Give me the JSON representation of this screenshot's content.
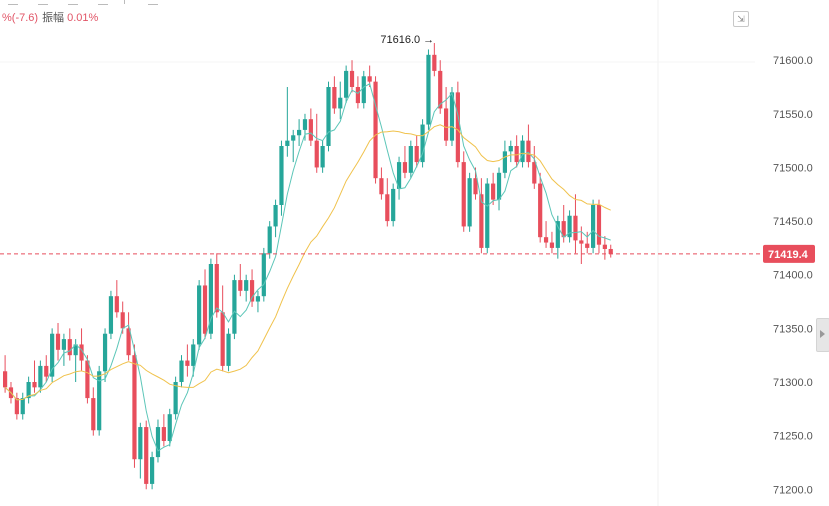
{
  "header": {
    "change_text": "%(-7.6)",
    "amplitude_label": "振幅",
    "amplitude_value": "0.01%"
  },
  "controls": {
    "fit_icon": "fit-screen-icon",
    "scroll_icon": "chevron-right-icon"
  },
  "colors": {
    "up": "#26a69a",
    "down": "#e84e5c",
    "ma_fast": "#5cc6b8",
    "ma_slow": "#f0c24c",
    "price_line": "#e84e5c",
    "axis_text": "#555555"
  },
  "chart_data": {
    "type": "candlestick",
    "y_axis_ticks": [
      71200,
      71250,
      71300,
      71350,
      71400,
      71450,
      71500,
      71550,
      71600
    ],
    "y_axis_tick_labels": [
      "71200.0",
      "71250.0",
      "71300.0",
      "71350.0",
      "71400.0",
      "71450.0",
      "71500.0",
      "71550.0",
      "71600.0"
    ],
    "ylim": [
      71190,
      71630
    ],
    "current_price": 71419.4,
    "current_price_label": "71419.4",
    "high_annotation": {
      "value": 71616.0,
      "label": "71616.0 →",
      "candle_index": 72
    },
    "candles": [
      [
        71310,
        71325,
        71290,
        71295
      ],
      [
        71295,
        71300,
        71280,
        71285
      ],
      [
        71285,
        71290,
        71265,
        71270
      ],
      [
        71270,
        71290,
        71265,
        71285
      ],
      [
        71285,
        71305,
        71280,
        71300
      ],
      [
        71300,
        71320,
        71290,
        71295
      ],
      [
        71295,
        71320,
        71290,
        71315
      ],
      [
        71315,
        71325,
        71300,
        71305
      ],
      [
        71305,
        71350,
        71300,
        71345
      ],
      [
        71345,
        71355,
        71320,
        71330
      ],
      [
        71330,
        71345,
        71315,
        71340
      ],
      [
        71340,
        71350,
        71320,
        71325
      ],
      [
        71325,
        71340,
        71300,
        71335
      ],
      [
        71335,
        71350,
        71310,
        71320
      ],
      [
        71320,
        71325,
        71280,
        71285
      ],
      [
        71285,
        71295,
        71250,
        71255
      ],
      [
        71255,
        71315,
        71250,
        71310
      ],
      [
        71310,
        71350,
        71300,
        71345
      ],
      [
        71345,
        71385,
        71340,
        71380
      ],
      [
        71380,
        71395,
        71360,
        71365
      ],
      [
        71365,
        71375,
        71345,
        71350
      ],
      [
        71350,
        71365,
        71320,
        71325
      ],
      [
        71325,
        71335,
        71220,
        71228
      ],
      [
        71228,
        71262,
        71210,
        71258
      ],
      [
        71258,
        71264,
        71200,
        71205
      ],
      [
        71205,
        71235,
        71200,
        71230
      ],
      [
        71230,
        71265,
        71225,
        71258
      ],
      [
        71258,
        71270,
        71240,
        71245
      ],
      [
        71245,
        71275,
        71240,
        71270
      ],
      [
        71270,
        71305,
        71265,
        71300
      ],
      [
        71300,
        71325,
        71295,
        71320
      ],
      [
        71320,
        71335,
        71305,
        71315
      ],
      [
        71315,
        71340,
        71305,
        71335
      ],
      [
        71335,
        71395,
        71330,
        71390
      ],
      [
        71390,
        71405,
        71340,
        71345
      ],
      [
        71345,
        71415,
        71340,
        71410
      ],
      [
        71410,
        71420,
        71360,
        71365
      ],
      [
        71365,
        71390,
        71310,
        71315
      ],
      [
        71315,
        71350,
        71310,
        71345
      ],
      [
        71345,
        71400,
        71340,
        71395
      ],
      [
        71395,
        71410,
        71380,
        71385
      ],
      [
        71385,
        71400,
        71375,
        71395
      ],
      [
        71395,
        71405,
        71370,
        71375
      ],
      [
        71375,
        71385,
        71365,
        71380
      ],
      [
        71380,
        71425,
        71375,
        71420
      ],
      [
        71420,
        71450,
        71415,
        71445
      ],
      [
        71445,
        71470,
        71435,
        71465
      ],
      [
        71465,
        71525,
        71455,
        71520
      ],
      [
        71520,
        71575,
        71510,
        71525
      ],
      [
        71525,
        71535,
        71505,
        71530
      ],
      [
        71530,
        71545,
        71520,
        71535
      ],
      [
        71535,
        71550,
        71525,
        71545
      ],
      [
        71545,
        71555,
        71520,
        71525
      ],
      [
        71525,
        71550,
        71495,
        71500
      ],
      [
        71500,
        71525,
        71495,
        71520
      ],
      [
        71520,
        71580,
        71515,
        71575
      ],
      [
        71575,
        71585,
        71550,
        71555
      ],
      [
        71555,
        71580,
        71545,
        71565
      ],
      [
        71565,
        71595,
        71560,
        71590
      ],
      [
        71590,
        71600,
        71570,
        71575
      ],
      [
        71575,
        71585,
        71555,
        71560
      ],
      [
        71560,
        71590,
        71555,
        71585
      ],
      [
        71585,
        71595,
        71575,
        71580
      ],
      [
        71580,
        71585,
        71485,
        71490
      ],
      [
        71490,
        71500,
        71470,
        71475
      ],
      [
        71475,
        71490,
        71445,
        71450
      ],
      [
        71450,
        71485,
        71445,
        71480
      ],
      [
        71480,
        71510,
        71470,
        71505
      ],
      [
        71505,
        71520,
        71490,
        71495
      ],
      [
        71495,
        71525,
        71490,
        71520
      ],
      [
        71520,
        71530,
        71500,
        71505
      ],
      [
        71505,
        71545,
        71500,
        71540
      ],
      [
        71540,
        71610,
        71535,
        71605
      ],
      [
        71605,
        71616,
        71585,
        71590
      ],
      [
        71590,
        71600,
        71550,
        71555
      ],
      [
        71555,
        71575,
        71520,
        71525
      ],
      [
        71525,
        71575,
        71520,
        71570
      ],
      [
        71570,
        71580,
        71500,
        71505
      ],
      [
        71505,
        71515,
        71440,
        71445
      ],
      [
        71445,
        71495,
        71440,
        71490
      ],
      [
        71490,
        71500,
        71470,
        71475
      ],
      [
        71475,
        71490,
        71420,
        71425
      ],
      [
        71425,
        71490,
        71420,
        71485
      ],
      [
        71485,
        71495,
        71465,
        71470
      ],
      [
        71470,
        71500,
        71460,
        71495
      ],
      [
        71495,
        71525,
        71490,
        71515
      ],
      [
        71515,
        71525,
        71505,
        71520
      ],
      [
        71520,
        71530,
        71500,
        71505
      ],
      [
        71505,
        71530,
        71500,
        71525
      ],
      [
        71525,
        71540,
        71500,
        71505
      ],
      [
        71505,
        71520,
        71480,
        71485
      ],
      [
        71485,
        71495,
        71430,
        71435
      ],
      [
        71435,
        71450,
        71425,
        71430
      ],
      [
        71430,
        71440,
        71420,
        71425
      ],
      [
        71425,
        71455,
        71415,
        71450
      ],
      [
        71450,
        71465,
        71430,
        71435
      ],
      [
        71435,
        71460,
        71430,
        71455
      ],
      [
        71455,
        71475,
        71420,
        71432
      ],
      [
        71432,
        71445,
        71410,
        71429
      ],
      [
        71429,
        71440,
        71420,
        71425
      ],
      [
        71425,
        71470,
        71420,
        71465
      ],
      [
        71465,
        71470,
        71420,
        71428
      ],
      [
        71428,
        71436,
        71414,
        71424
      ],
      [
        71424,
        71428,
        71416,
        71419.4
      ]
    ]
  }
}
